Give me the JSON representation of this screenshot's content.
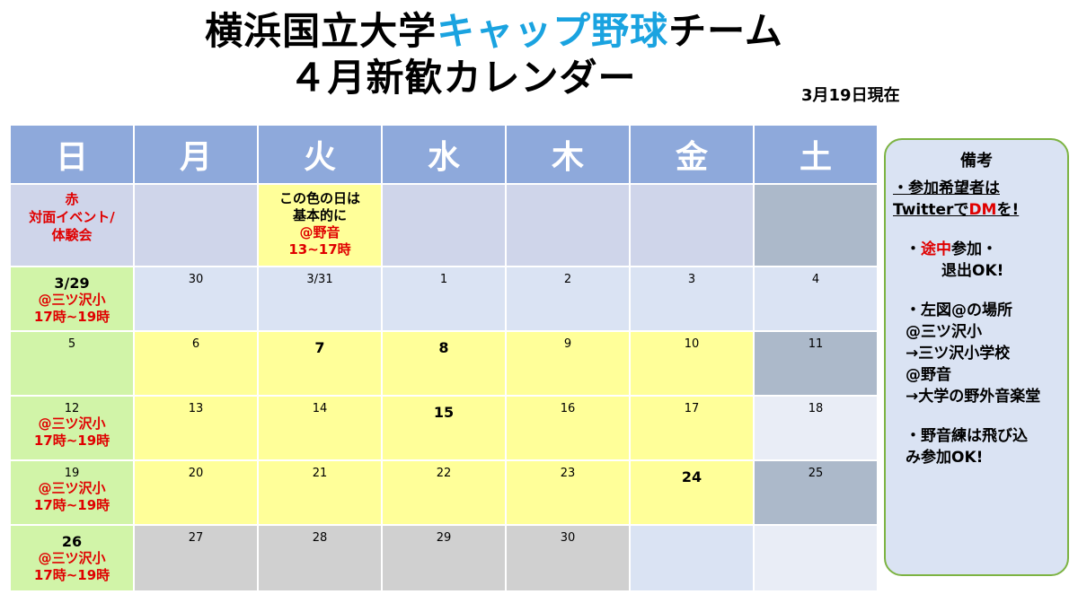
{
  "title": {
    "line1_part1": "横浜国立大学",
    "line1_accent": "キャップ野球",
    "line1_part2": "チーム",
    "line2": "４月新歓カレンダー"
  },
  "as_of": "3月19日現在",
  "colors": {
    "header": "#8ea9db",
    "accent_title": "#1aa3e0",
    "event_red": "#e00000",
    "practice_yellow": "#ffff99",
    "event_green": "#d1f4a8"
  },
  "weekdays": [
    "日",
    "月",
    "火",
    "水",
    "木",
    "金",
    "土"
  ],
  "legend": {
    "red_line1": "赤",
    "red_line2": "対面イベント/",
    "red_line3": "体験会",
    "yellow_line1": "この色の日は",
    "yellow_line2": "基本的に",
    "yellow_line3": "@野音",
    "yellow_line4": "13~17時"
  },
  "weeks": [
    {
      "days": [
        "3/29",
        "30",
        "3/31",
        "1",
        "2",
        "3",
        "4"
      ],
      "sunday_event": [
        "@三ツ沢小",
        "17時~19時"
      ]
    },
    {
      "days": [
        "5",
        "6",
        "7",
        "8",
        "9",
        "10",
        "11"
      ]
    },
    {
      "days": [
        "12",
        "13",
        "14",
        "15",
        "16",
        "17",
        "18"
      ],
      "sunday_event": [
        "@三ツ沢小",
        "17時~19時"
      ]
    },
    {
      "days": [
        "19",
        "20",
        "21",
        "22",
        "23",
        "24",
        "25"
      ],
      "sunday_event": [
        "@三ツ沢小",
        "17時~19時"
      ]
    },
    {
      "days": [
        "26",
        "27",
        "28",
        "29",
        "30",
        "",
        ""
      ],
      "sunday_event": [
        "@三ツ沢小",
        "17時~19時"
      ]
    }
  ],
  "remarks": {
    "heading": "備考",
    "item1_a": "・参加希望者は",
    "item1_b": "Twitterで",
    "item1_dm": "DM",
    "item1_c": "を!",
    "item2_a": "・",
    "item2_red": "途中",
    "item2_b": "参加・",
    "item2_c": "退出OK!",
    "item3_head": "・左図@の場所",
    "item3_l1": "@三ツ沢小",
    "item3_l2": "→三ツ沢小学校",
    "item3_l3": "@野音",
    "item3_l4": "→大学の野外音楽堂",
    "item4_a": "・野音練は飛び込",
    "item4_b": "み参加OK!"
  }
}
